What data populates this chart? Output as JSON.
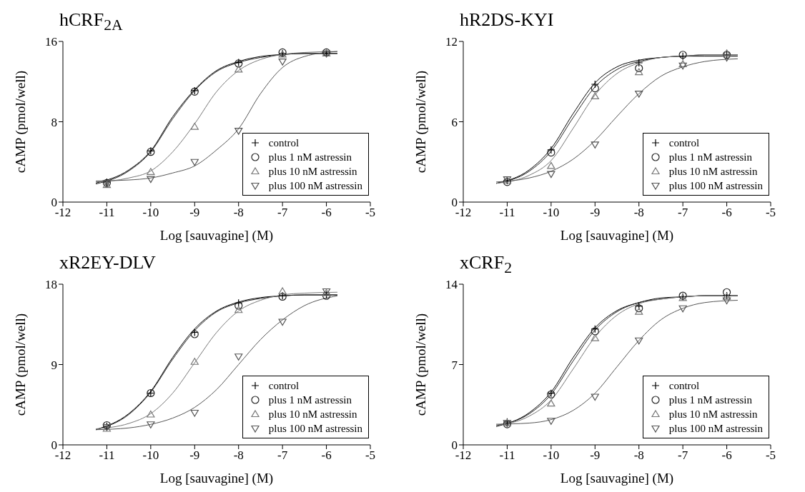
{
  "chart_data": [
    {
      "type": "scatter",
      "title": "hCRF$_{2A}$",
      "xlabel": "Log [sauvagine] (M)",
      "ylabel": "cAMP (pmol/well)",
      "x": [
        -11,
        -10,
        -9,
        -8,
        -7,
        -6
      ],
      "xlim": [
        -12,
        -5
      ],
      "xticks": [
        -12,
        -11,
        -10,
        -9,
        -8,
        -7,
        -6,
        -5
      ],
      "ylim": [
        0,
        16
      ],
      "yticks": [
        0,
        8,
        16
      ],
      "grid": false,
      "legend": "bottom right",
      "series": [
        {
          "name": "control",
          "marker": "cross",
          "color": "#000000",
          "values": [
            2.0,
            5.1,
            11.1,
            13.9,
            14.8,
            14.8
          ]
        },
        {
          "name": "plus 1 nM astressin",
          "marker": "circle",
          "color": "#222222",
          "values": [
            1.9,
            5.0,
            11.0,
            13.8,
            14.9,
            14.9
          ]
        },
        {
          "name": "plus 10 nM astressin",
          "marker": "triangle",
          "color": "#777777",
          "values": [
            1.7,
            3.0,
            7.5,
            13.2,
            14.7,
            14.8
          ]
        },
        {
          "name": "plus 100 nM astressin",
          "marker": "triangle-down",
          "color": "#555555",
          "values": [
            1.9,
            2.3,
            4.0,
            7.1,
            14.0,
            14.8
          ]
        },
        {
          "type": "line",
          "color": "#000000",
          "x": [
            -11.25,
            -10.5,
            -10,
            -9.5,
            -9,
            -8.5,
            -8,
            -7.5,
            -7,
            -6.5,
            -5.75
          ],
          "values": [
            1.9,
            3.2,
            5.1,
            8.5,
            11.2,
            13.1,
            14.0,
            14.5,
            14.7,
            14.8,
            14.8
          ]
        },
        {
          "type": "line",
          "color": "#222222",
          "x": [
            -11.25,
            -10.5,
            -10,
            -9.5,
            -9,
            -8.5,
            -8,
            -7.5,
            -7,
            -6.5,
            -5.75
          ],
          "values": [
            1.8,
            3.1,
            5.0,
            8.3,
            11.1,
            13.0,
            13.9,
            14.4,
            14.7,
            14.8,
            14.8
          ]
        },
        {
          "type": "line",
          "color": "#777777",
          "x": [
            -11.25,
            -10.5,
            -10,
            -9.5,
            -9,
            -8.5,
            -8,
            -7.5,
            -7,
            -6.5,
            -5.75
          ],
          "values": [
            2.0,
            2.4,
            3.1,
            5.0,
            7.8,
            11.0,
            13.1,
            14.2,
            14.7,
            14.9,
            15.0
          ]
        },
        {
          "type": "line",
          "color": "#555555",
          "x": [
            -11.25,
            -10.5,
            -10,
            -9.5,
            -9,
            -8.5,
            -8,
            -7.5,
            -7,
            -6.5,
            -5.75
          ],
          "values": [
            2.1,
            2.2,
            2.4,
            2.9,
            3.6,
            5.2,
            7.3,
            10.8,
            13.4,
            14.5,
            15.0
          ]
        }
      ]
    },
    {
      "type": "scatter",
      "title": "hR2DS-KYI",
      "xlabel": "Log [sauvagine] (M)",
      "ylabel": "cAMP (pmol/well)",
      "x": [
        -11,
        -10,
        -9,
        -8,
        -7,
        -6
      ],
      "xlim": [
        -12,
        -5
      ],
      "xticks": [
        -12,
        -11,
        -10,
        -9,
        -8,
        -7,
        -6,
        -5
      ],
      "ylim": [
        0,
        12
      ],
      "yticks": [
        0,
        6,
        12
      ],
      "grid": false,
      "legend": "bottom right",
      "series": [
        {
          "name": "control",
          "marker": "cross",
          "color": "#000000",
          "values": [
            1.6,
            3.9,
            8.8,
            10.4,
            10.9,
            11.0
          ]
        },
        {
          "name": "plus 1 nM astressin",
          "marker": "circle",
          "color": "#222222",
          "values": [
            1.5,
            3.7,
            8.5,
            10.0,
            11.0,
            11.0
          ]
        },
        {
          "name": "plus 10 nM astressin",
          "marker": "triangle",
          "color": "#777777",
          "values": [
            1.6,
            2.7,
            7.9,
            9.7,
            10.3,
            11.1
          ]
        },
        {
          "name": "plus 100 nM astressin",
          "marker": "triangle-down",
          "color": "#555555",
          "values": [
            1.7,
            2.1,
            4.3,
            8.1,
            10.2,
            10.8
          ]
        },
        {
          "type": "line",
          "color": "#000000",
          "x": [
            -11.25,
            -10.5,
            -10,
            -9.5,
            -9,
            -8.5,
            -8,
            -7.5,
            -7,
            -6.5,
            -5.75
          ],
          "values": [
            1.4,
            2.4,
            4.0,
            6.6,
            8.9,
            10.1,
            10.6,
            10.8,
            10.9,
            10.9,
            10.9
          ]
        },
        {
          "type": "line",
          "color": "#222222",
          "x": [
            -11.25,
            -10.5,
            -10,
            -9.5,
            -9,
            -8.5,
            -8,
            -7.5,
            -7,
            -6.5,
            -5.75
          ],
          "values": [
            1.4,
            2.3,
            3.8,
            6.3,
            8.6,
            9.9,
            10.5,
            10.8,
            10.9,
            11.0,
            11.0
          ]
        },
        {
          "type": "line",
          "color": "#777777",
          "x": [
            -11.25,
            -10.5,
            -10,
            -9.5,
            -9,
            -8.5,
            -8,
            -7.5,
            -7,
            -6.5,
            -5.75
          ],
          "values": [
            1.4,
            2.0,
            3.1,
            5.5,
            8.0,
            9.6,
            10.4,
            10.8,
            10.9,
            11.0,
            11.0
          ]
        },
        {
          "type": "line",
          "color": "#555555",
          "x": [
            -11.25,
            -10.5,
            -10,
            -9.5,
            -9,
            -8.5,
            -8,
            -7.5,
            -7,
            -6.5,
            -5.75
          ],
          "values": [
            1.5,
            1.8,
            2.3,
            3.2,
            4.6,
            6.4,
            8.1,
            9.4,
            10.1,
            10.5,
            10.7
          ]
        }
      ]
    },
    {
      "type": "scatter",
      "title": "xR2EY-DLV",
      "xlabel": "Log [sauvagine] (M)",
      "ylabel": "cAMP (pmol/well)",
      "x": [
        -11,
        -10,
        -9,
        -8,
        -7,
        -6
      ],
      "xlim": [
        -12,
        -5
      ],
      "xticks": [
        -12,
        -11,
        -10,
        -9,
        -8,
        -7,
        -6,
        -5
      ],
      "ylim": [
        0,
        18
      ],
      "yticks": [
        0,
        9,
        18
      ],
      "grid": false,
      "legend": "bottom right",
      "series": [
        {
          "name": "control",
          "marker": "cross",
          "color": "#000000",
          "values": [
            2.1,
            5.8,
            12.6,
            15.9,
            16.7,
            16.8
          ]
        },
        {
          "name": "plus 1 nM astressin",
          "marker": "circle",
          "color": "#222222",
          "values": [
            2.2,
            5.8,
            12.4,
            15.6,
            16.6,
            16.7
          ]
        },
        {
          "name": "plus 10 nM astressin",
          "marker": "triangle",
          "color": "#777777",
          "values": [
            1.8,
            3.4,
            9.3,
            15.1,
            17.2,
            17.0
          ]
        },
        {
          "name": "plus 100 nM astressin",
          "marker": "triangle-down",
          "color": "#555555",
          "values": [
            2.0,
            2.3,
            3.6,
            9.9,
            13.8,
            17.2
          ]
        },
        {
          "type": "line",
          "color": "#000000",
          "x": [
            -11.25,
            -10.5,
            -10,
            -9.5,
            -9,
            -8.5,
            -8,
            -7.5,
            -7,
            -6.5,
            -5.75
          ],
          "values": [
            1.7,
            3.5,
            6.0,
            9.8,
            13.0,
            15.0,
            16.0,
            16.5,
            16.7,
            16.8,
            16.8
          ]
        },
        {
          "type": "line",
          "color": "#222222",
          "x": [
            -11.25,
            -10.5,
            -10,
            -9.5,
            -9,
            -8.5,
            -8,
            -7.5,
            -7,
            -6.5,
            -5.75
          ],
          "values": [
            1.7,
            3.4,
            5.9,
            9.6,
            12.8,
            14.9,
            15.9,
            16.4,
            16.7,
            16.8,
            16.8
          ]
        },
        {
          "type": "line",
          "color": "#777777",
          "x": [
            -11.25,
            -10.5,
            -10,
            -9.5,
            -9,
            -8.5,
            -8,
            -7.5,
            -7,
            -6.5,
            -5.75
          ],
          "values": [
            1.8,
            2.4,
            3.5,
            5.8,
            9.2,
            12.6,
            15.0,
            16.2,
            16.8,
            17.0,
            17.1
          ]
        },
        {
          "type": "line",
          "color": "#555555",
          "x": [
            -11.25,
            -10.5,
            -10,
            -9.5,
            -9,
            -8.5,
            -8,
            -7.5,
            -7,
            -6.5,
            -5.75
          ],
          "values": [
            1.7,
            1.9,
            2.3,
            3.0,
            4.2,
            6.2,
            9.0,
            11.8,
            14.0,
            15.6,
            16.7
          ]
        }
      ]
    },
    {
      "type": "scatter",
      "title": "xCRF$_{2}$",
      "xlabel": "Log [sauvagine] (M)",
      "ylabel": "cAMP (pmol/well)",
      "x": [
        -11,
        -10,
        -9,
        -8,
        -7,
        -6
      ],
      "xlim": [
        -12,
        -5
      ],
      "xticks": [
        -12,
        -11,
        -10,
        -9,
        -8,
        -7,
        -6,
        -5
      ],
      "ylim": [
        0,
        14
      ],
      "yticks": [
        0,
        7,
        14
      ],
      "grid": false,
      "legend": "bottom right",
      "series": [
        {
          "name": "control",
          "marker": "cross",
          "color": "#000000",
          "values": [
            2.0,
            4.5,
            10.1,
            12.1,
            12.9,
            13.0
          ]
        },
        {
          "name": "plus 1 nM astressin",
          "marker": "circle",
          "color": "#222222",
          "values": [
            1.8,
            4.4,
            9.9,
            11.9,
            13.0,
            13.3
          ]
        },
        {
          "name": "plus 10 nM astressin",
          "marker": "triangle",
          "color": "#777777",
          "values": [
            1.9,
            3.6,
            9.3,
            11.6,
            12.8,
            12.9
          ]
        },
        {
          "name": "plus 100 nM astressin",
          "marker": "triangle-down",
          "color": "#555555",
          "values": [
            1.9,
            2.1,
            4.2,
            9.1,
            11.9,
            12.6
          ]
        },
        {
          "type": "line",
          "color": "#000000",
          "x": [
            -11.25,
            -10.5,
            -10,
            -9.5,
            -9,
            -8.5,
            -8,
            -7.5,
            -7,
            -6.5,
            -5.75
          ],
          "values": [
            1.6,
            2.8,
            4.6,
            7.6,
            10.2,
            11.7,
            12.4,
            12.8,
            12.9,
            13.0,
            13.0
          ]
        },
        {
          "type": "line",
          "color": "#222222",
          "x": [
            -11.25,
            -10.5,
            -10,
            -9.5,
            -9,
            -8.5,
            -8,
            -7.5,
            -7,
            -6.5,
            -5.75
          ],
          "values": [
            1.7,
            2.7,
            4.4,
            7.3,
            10.0,
            11.6,
            12.4,
            12.7,
            12.9,
            13.0,
            13.0
          ]
        },
        {
          "type": "line",
          "color": "#777777",
          "x": [
            -11.25,
            -10.5,
            -10,
            -9.5,
            -9,
            -8.5,
            -8,
            -7.5,
            -7,
            -6.5,
            -5.75
          ],
          "values": [
            1.7,
            2.5,
            3.9,
            6.6,
            9.4,
            11.3,
            12.3,
            12.7,
            12.9,
            13.0,
            13.0
          ]
        },
        {
          "type": "line",
          "color": "#555555",
          "x": [
            -11.25,
            -10.5,
            -10,
            -9.5,
            -9,
            -8.5,
            -8,
            -7.5,
            -7,
            -6.5,
            -5.75
          ],
          "values": [
            1.8,
            1.9,
            2.2,
            3.0,
            4.5,
            6.8,
            9.1,
            10.9,
            11.9,
            12.4,
            12.6
          ]
        }
      ]
    }
  ]
}
